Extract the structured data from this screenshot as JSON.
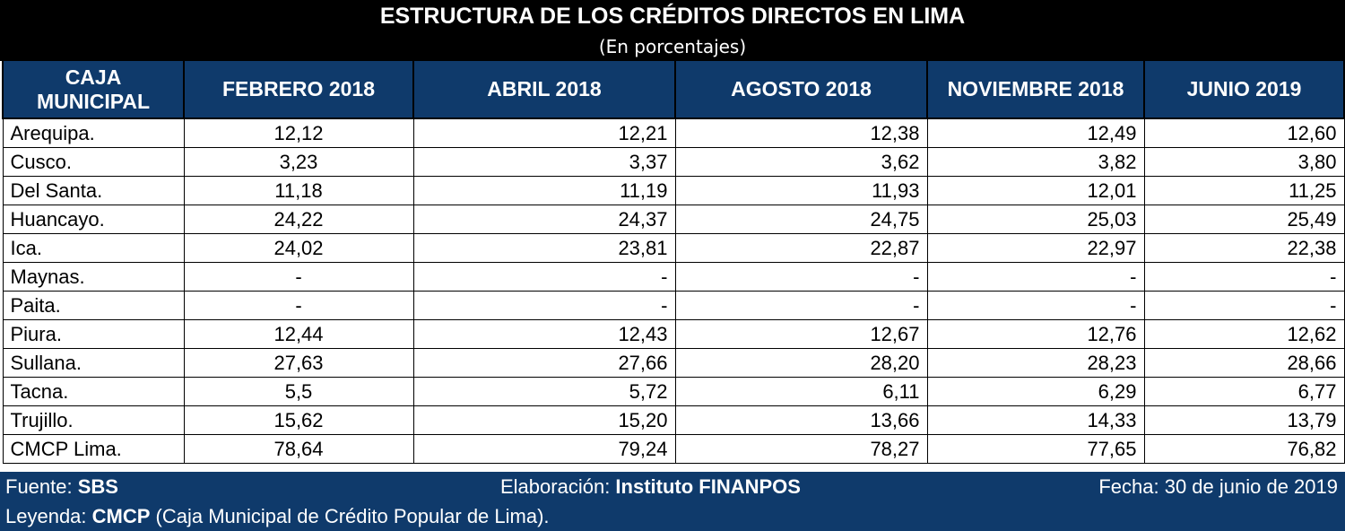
{
  "chart_data": {
    "type": "table",
    "title": "ESTRUCTURA DE LOS CRÉDITOS DIRECTOS EN LIMA",
    "subtitle": "(En porcentajes)",
    "columns": [
      "CAJA MUNICIPAL",
      "FEBRERO 2018",
      "ABRIL 2018",
      "AGOSTO 2018",
      "NOVIEMBRE 2018",
      "JUNIO 2019"
    ],
    "rows": [
      [
        "Arequipa.",
        "12,12",
        "12,21",
        "12,38",
        "12,49",
        "12,60"
      ],
      [
        "Cusco.",
        "3,23",
        "3,37",
        "3,62",
        "3,82",
        "3,80"
      ],
      [
        "Del Santa.",
        "11,18",
        "11,19",
        "11,93",
        "12,01",
        "11,25"
      ],
      [
        "Huancayo.",
        "24,22",
        "24,37",
        "24,75",
        "25,03",
        "25,49"
      ],
      [
        "Ica.",
        "24,02",
        "23,81",
        "22,87",
        "22,97",
        "22,38"
      ],
      [
        "Maynas.",
        "-",
        "-",
        "-",
        "-",
        "-"
      ],
      [
        "Paita.",
        "-",
        "-",
        "-",
        "-",
        "-"
      ],
      [
        "Piura.",
        "12,44",
        "12,43",
        "12,67",
        "12,76",
        "12,62"
      ],
      [
        "Sullana.",
        "27,63",
        "27,66",
        "28,20",
        "28,23",
        "28,66"
      ],
      [
        "Tacna.",
        "5,5",
        "5,72",
        "6,11",
        "6,29",
        "6,77"
      ],
      [
        "Trujillo.",
        "15,62",
        "15,20",
        "13,66",
        "14,33",
        "13,79"
      ],
      [
        "CMCP Lima.",
        "78,64",
        "79,24",
        "78,27",
        "77,65",
        "76,82"
      ]
    ]
  },
  "footer": {
    "source_label": "Fuente: ",
    "source_value": "SBS",
    "elab_label": "Elaboración: ",
    "elab_value": "Instituto FINANPOS",
    "date_text": "Fecha: 30 de junio de 2019",
    "legend_label": "Leyenda: ",
    "legend_value": "CMCP",
    "legend_desc": " (Caja Municipal de Crédito Popular de Lima)."
  },
  "colors": {
    "title_bg": "#000000",
    "header_bg": "#0f3a6b",
    "header_text": "#ffffff",
    "footer_bg": "#0f3a6b"
  }
}
